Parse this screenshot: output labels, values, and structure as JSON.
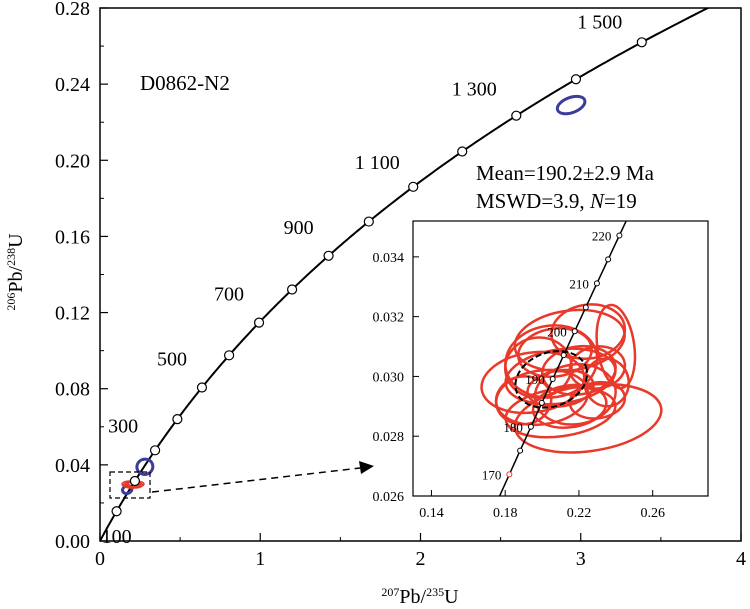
{
  "chart_data": [
    {
      "type": "scatter",
      "subtype": "concordia",
      "title": "",
      "sample_label": "D0862-N2",
      "xlabel": {
        "sup1": "207",
        "main1": "Pb/",
        "sup2": "235",
        "main2": "U"
      },
      "ylabel": {
        "sup1": "206",
        "main1": "Pb/",
        "sup2": "238",
        "main2": "U"
      },
      "xlim": [
        0,
        4
      ],
      "ylim": [
        0,
        0.28
      ],
      "x_ticks": [
        "0",
        "1",
        "2",
        "3",
        "4"
      ],
      "y_ticks": [
        "0.00",
        "0.04",
        "0.08",
        "0.12",
        "0.16",
        "0.20",
        "0.24",
        "0.28"
      ],
      "grid": false,
      "concordia_ages_ma": [
        100,
        200,
        300,
        400,
        500,
        600,
        700,
        800,
        900,
        1000,
        1100,
        1200,
        1300,
        1400,
        1500
      ],
      "age_labels": [
        {
          "text": "100",
          "age": 100
        },
        {
          "text": "300",
          "age": 300
        },
        {
          "text": "500",
          "age": 500
        },
        {
          "text": "700",
          "age": 700
        },
        {
          "text": "900",
          "age": 900
        },
        {
          "text": "1 100",
          "age": 1100
        },
        {
          "text": "1 300",
          "age": 1300
        },
        {
          "text": "1 500",
          "age": 1500
        }
      ],
      "result_line1": "Mean=190.2±2.9 Ma",
      "result_line2_prefix": "MSWD=3.9, ",
      "result_line2_n": "N",
      "result_line2_suffix": "=19",
      "discordant_ellipses": [
        {
          "x": 2.94,
          "y": 0.229,
          "rx": 0.09,
          "ry": 0.004,
          "color": "#3c3c9b"
        },
        {
          "x": 0.28,
          "y": 0.039,
          "rx": 0.05,
          "ry": 0.004,
          "color": "#3c3c9b"
        },
        {
          "x": 0.17,
          "y": 0.027,
          "rx": 0.03,
          "ry": 0.002,
          "color": "#3c3c9b"
        }
      ],
      "colors": {
        "concordant": "#e8392a",
        "discordant": "#3c3c9b",
        "curve": "#000000"
      }
    },
    {
      "type": "scatter",
      "subtype": "concordia-inset",
      "xlim": [
        0.13,
        0.29
      ],
      "ylim": [
        0.026,
        0.0352
      ],
      "x_ticks": [
        "0.14",
        "0.18",
        "0.22",
        "0.26"
      ],
      "y_ticks": [
        "0.026",
        "0.028",
        "0.030",
        "0.032",
        "0.034"
      ],
      "grid": false,
      "concordia_ages_ma": [
        170,
        175,
        180,
        185,
        190,
        195,
        200,
        205,
        210,
        215,
        220
      ],
      "age_labels": [
        "170",
        "180",
        "190",
        "200",
        "210",
        "220"
      ],
      "mean_ellipse": {
        "x": 0.205,
        "y": 0.0299,
        "rx": 0.02,
        "ry": 0.0009
      },
      "spot_ellipses": [
        {
          "x": 0.205,
          "y": 0.0305,
          "rx": 0.025,
          "ry": 0.0012,
          "rot": 0
        },
        {
          "x": 0.215,
          "y": 0.0312,
          "rx": 0.03,
          "ry": 0.001,
          "rot": 0
        },
        {
          "x": 0.225,
          "y": 0.0315,
          "rx": 0.02,
          "ry": 0.0009,
          "rot": 0
        },
        {
          "x": 0.24,
          "y": 0.031,
          "rx": 0.01,
          "ry": 0.0014,
          "rot": 0
        },
        {
          "x": 0.195,
          "y": 0.0298,
          "rx": 0.028,
          "ry": 0.001,
          "rot": 0
        },
        {
          "x": 0.21,
          "y": 0.03,
          "rx": 0.03,
          "ry": 0.0009,
          "rot": 0
        },
        {
          "x": 0.22,
          "y": 0.0302,
          "rx": 0.02,
          "ry": 0.0008,
          "rot": 0
        },
        {
          "x": 0.23,
          "y": 0.0303,
          "rx": 0.015,
          "ry": 0.0007,
          "rot": 0
        },
        {
          "x": 0.2,
          "y": 0.0293,
          "rx": 0.025,
          "ry": 0.0009,
          "rot": 0
        },
        {
          "x": 0.21,
          "y": 0.0288,
          "rx": 0.03,
          "ry": 0.0008,
          "rot": 0
        },
        {
          "x": 0.215,
          "y": 0.029,
          "rx": 0.02,
          "ry": 0.0007,
          "rot": 0
        },
        {
          "x": 0.23,
          "y": 0.0292,
          "rx": 0.015,
          "ry": 0.0006,
          "rot": 0
        },
        {
          "x": 0.19,
          "y": 0.0292,
          "rx": 0.015,
          "ry": 0.0008,
          "rot": 0
        },
        {
          "x": 0.225,
          "y": 0.0286,
          "rx": 0.04,
          "ry": 0.0011,
          "rot": 0
        },
        {
          "x": 0.21,
          "y": 0.0296,
          "rx": 0.018,
          "ry": 0.0006,
          "rot": 0
        },
        {
          "x": 0.198,
          "y": 0.0303,
          "rx": 0.018,
          "ry": 0.001,
          "rot": 0
        },
        {
          "x": 0.235,
          "y": 0.0298,
          "rx": 0.012,
          "ry": 0.0008,
          "rot": 0
        },
        {
          "x": 0.207,
          "y": 0.0308,
          "rx": 0.02,
          "ry": 0.0008,
          "rot": 0
        },
        {
          "x": 0.218,
          "y": 0.0294,
          "rx": 0.022,
          "ry": 0.001,
          "rot": 0
        }
      ],
      "colors": {
        "spots": "#e8392a",
        "mean": "#000000",
        "curve": "#000000"
      }
    }
  ]
}
